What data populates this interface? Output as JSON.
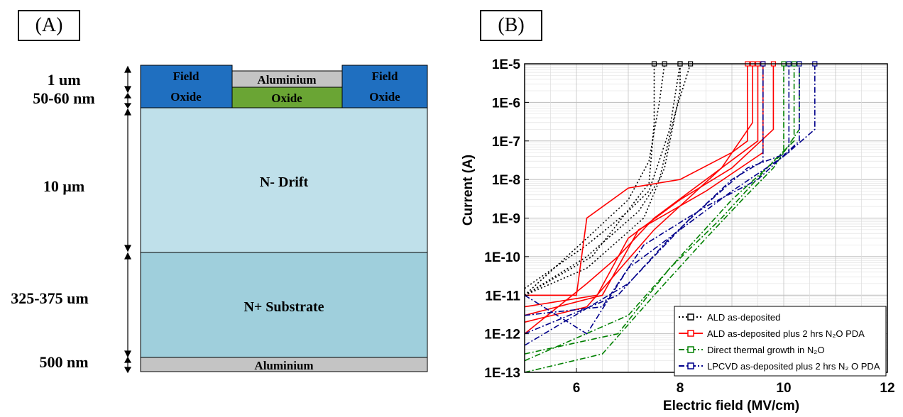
{
  "panel_a": {
    "label": "(A)",
    "layer_thickness_labels": [
      "1 um",
      "50-60 nm",
      "10 μm",
      "325-375 um",
      "500 nm"
    ],
    "field_oxide_left": [
      "Field",
      "Oxide"
    ],
    "field_oxide_right": [
      "Field",
      "Oxide"
    ],
    "gate_metal": "Aluminium",
    "gate_oxide": "Oxide",
    "drift": "N- Drift",
    "substrate": "N+ Substrate",
    "back_contact": "Aluminium",
    "colors": {
      "field_oxide": "#1f6fc0",
      "aluminium": "#c4c4c4",
      "gate_oxide": "#6aa534",
      "drift": "#bfe0ea",
      "substrate": "#9fcfdc"
    }
  },
  "panel_b": {
    "label": "(B)",
    "chart_data": {
      "type": "line",
      "xlabel": "Electric field (MV/cm)",
      "ylabel": "Current (A)",
      "x_ticks": [
        "6",
        "8",
        "10",
        "12"
      ],
      "y_ticks": [
        "1E-5",
        "1E-6",
        "1E-7",
        "1E-8",
        "1E-9",
        "1E-10",
        "1E-11",
        "1E-12",
        "1E-13"
      ],
      "xlim": [
        5,
        12
      ],
      "ylim": [
        1e-13,
        1e-05
      ],
      "y_scale": "log",
      "grid": true,
      "legend_position": "bottom-right",
      "legend_entries": [
        {
          "text": "ALD as-deposited",
          "color": "#000000"
        },
        {
          "text": "ALD as-deposited plus 2 hrs N₂O PDA",
          "color": "#ff0000"
        },
        {
          "text": "Direct thermal growth in N₂O",
          "color": "#008000"
        },
        {
          "text": "LPCVD as-deposited plus 2 hrs N₂ O PDA",
          "color": "#00008b"
        }
      ],
      "series": [
        {
          "name": "ALD as-deposited",
          "color": "#000000",
          "curves": [
            [
              [
                5.0,
                1.5e-11
              ],
              [
                6.2,
                2e-10
              ],
              [
                7.0,
                1.5e-09
              ],
              [
                7.4,
                5e-09
              ],
              [
                7.8,
                2e-07
              ],
              [
                8.0,
                1e-05
              ]
            ],
            [
              [
                5.0,
                1e-11
              ],
              [
                6.2,
                1e-10
              ],
              [
                7.2,
                1.5e-09
              ],
              [
                7.6,
                1e-08
              ],
              [
                7.9,
                5e-07
              ],
              [
                8.2,
                1e-05
              ]
            ],
            [
              [
                5.0,
                1e-11
              ],
              [
                6.2,
                3e-10
              ],
              [
                7.0,
                3e-09
              ],
              [
                7.4,
                3e-08
              ],
              [
                7.6,
                1e-06
              ],
              [
                7.7,
                1e-05
              ]
            ],
            [
              [
                5.0,
                1e-11
              ],
              [
                6.2,
                5e-11
              ],
              [
                7.3,
                1e-09
              ],
              [
                7.7,
                2e-08
              ],
              [
                8.0,
                2e-06
              ],
              [
                8.0,
                1e-05
              ]
            ],
            [
              [
                5.0,
                1e-11
              ],
              [
                6.3,
                1e-10
              ],
              [
                7.4,
                8e-09
              ],
              [
                7.5,
                3e-07
              ],
              [
                7.5,
                1e-05
              ]
            ]
          ]
        },
        {
          "name": "ALD as-deposited plus 2 hrs N₂O PDA",
          "color": "#ff0000",
          "curves": [
            [
              [
                5.0,
                1e-11
              ],
              [
                6.0,
                1e-11
              ],
              [
                6.2,
                1e-09
              ],
              [
                7.0,
                6e-09
              ],
              [
                8.0,
                1e-08
              ],
              [
                9.0,
                5e-08
              ],
              [
                9.3,
                1e-07
              ],
              [
                9.3,
                1e-05
              ]
            ],
            [
              [
                5.0,
                1e-12
              ],
              [
                6.2,
                2e-11
              ],
              [
                6.8,
                1e-10
              ],
              [
                7.5,
                1e-09
              ],
              [
                8.5,
                1e-08
              ],
              [
                9.5,
                1e-07
              ],
              [
                9.5,
                1e-05
              ]
            ],
            [
              [
                5.0,
                5e-12
              ],
              [
                6.4,
                1e-11
              ],
              [
                7.0,
                3e-10
              ],
              [
                8.0,
                3e-09
              ],
              [
                9.0,
                2e-08
              ],
              [
                9.8,
                2e-07
              ],
              [
                9.8,
                1e-05
              ]
            ],
            [
              [
                5.0,
                3e-12
              ],
              [
                6.5,
                1e-11
              ],
              [
                7.2,
                5e-10
              ],
              [
                8.5,
                5e-09
              ],
              [
                9.6,
                5e-08
              ],
              [
                9.6,
                1e-05
              ]
            ],
            [
              [
                5.0,
                2e-12
              ],
              [
                6.2,
                5e-12
              ],
              [
                7.5,
                5e-10
              ],
              [
                8.8,
                2e-08
              ],
              [
                9.4,
                3e-07
              ],
              [
                9.4,
                1e-05
              ]
            ]
          ]
        },
        {
          "name": "Direct thermal growth in N₂O",
          "color": "#008000",
          "curves": [
            [
              [
                5.0,
                1e-13
              ],
              [
                6.5,
                3e-13
              ],
              [
                7.5,
                1e-11
              ],
              [
                8.5,
                3e-10
              ],
              [
                9.2,
                3e-09
              ],
              [
                9.8,
                2e-08
              ],
              [
                10.3,
                2e-07
              ],
              [
                10.3,
                1e-05
              ]
            ],
            [
              [
                5.0,
                3e-13
              ],
              [
                6.8,
                1e-12
              ],
              [
                7.8,
                5e-11
              ],
              [
                8.8,
                1e-09
              ],
              [
                9.8,
                3e-08
              ],
              [
                10.2,
                1e-07
              ],
              [
                10.2,
                1e-05
              ]
            ],
            [
              [
                5.0,
                2e-13
              ],
              [
                7.0,
                3e-12
              ],
              [
                8.0,
                1e-10
              ],
              [
                9.0,
                3e-09
              ],
              [
                10.0,
                5e-08
              ],
              [
                10.0,
                1e-05
              ]
            ]
          ]
        },
        {
          "name": "LPCVD as-deposited plus 2 hrs N₂ O PDA",
          "color": "#00008b",
          "curves": [
            [
              [
                5.0,
                1e-11
              ],
              [
                6.2,
                1e-12
              ],
              [
                7.0,
                5e-11
              ],
              [
                8.0,
                5e-10
              ],
              [
                9.0,
                5e-09
              ],
              [
                10.0,
                4e-08
              ],
              [
                10.6,
                2e-07
              ],
              [
                10.6,
                1e-05
              ]
            ],
            [
              [
                5.0,
                3e-12
              ],
              [
                6.5,
                5e-12
              ],
              [
                7.3,
                2e-10
              ],
              [
                8.5,
                2e-09
              ],
              [
                9.5,
                1e-08
              ],
              [
                10.3,
                1e-07
              ],
              [
                10.3,
                1e-05
              ]
            ],
            [
              [
                5.0,
                1e-12
              ],
              [
                6.8,
                1e-11
              ],
              [
                7.8,
                3e-10
              ],
              [
                9.0,
                1e-08
              ],
              [
                9.6,
                3e-08
              ],
              [
                9.6,
                1e-05
              ]
            ],
            [
              [
                5.0,
                5e-13
              ],
              [
                7.0,
                2e-11
              ],
              [
                8.2,
                1e-09
              ],
              [
                9.3,
                2e-08
              ],
              [
                10.1,
                5e-08
              ],
              [
                10.1,
                1e-05
              ]
            ]
          ]
        }
      ]
    }
  }
}
